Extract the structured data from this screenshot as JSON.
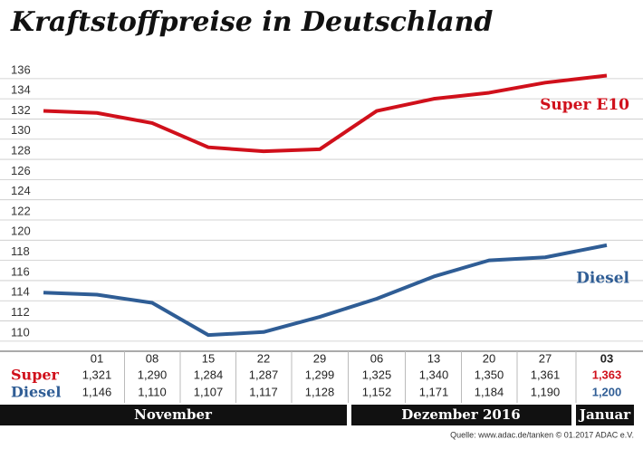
{
  "chart_data": {
    "type": "line",
    "title": "Kraftstoffpreise in Deutschland",
    "categories": [
      null,
      "01",
      "08",
      "15",
      "22",
      "29",
      "06",
      "13",
      "20",
      "27",
      "03"
    ],
    "series": [
      {
        "name": "Super E10",
        "color": "#d0101b",
        "values": [
          132.8,
          132.6,
          131.6,
          129.2,
          128.8,
          129.0,
          132.8,
          134.0,
          134.6,
          135.6,
          136.3
        ]
      },
      {
        "name": "Diesel",
        "color": "#2f5d95",
        "values": [
          114.8,
          114.6,
          113.8,
          110.6,
          110.9,
          112.4,
          114.2,
          116.4,
          118.0,
          118.3,
          119.5
        ]
      }
    ],
    "ylim": [
      109,
      137.6
    ],
    "yticks": [
      110,
      112,
      114,
      116,
      118,
      120,
      122,
      124,
      126,
      128,
      130,
      132,
      134,
      136
    ],
    "grid": true
  },
  "table": {
    "rows": [
      {
        "label": "Super",
        "cells": [
          "1,321",
          "1,290",
          "1,284",
          "1,287",
          "1,299",
          "1,325",
          "1,340",
          "1,350",
          "1,361",
          "1,363"
        ]
      },
      {
        "label": "Diesel",
        "cells": [
          "1,146",
          "1,110",
          "1,107",
          "1,117",
          "1,128",
          "1,152",
          "1,171",
          "1,184",
          "1,190",
          "1,200"
        ]
      }
    ],
    "months": [
      "November",
      "Dezember 2016",
      "Januar"
    ]
  },
  "source": "Quelle: www.adac.de/tanken  © 01.2017  ADAC e.V."
}
